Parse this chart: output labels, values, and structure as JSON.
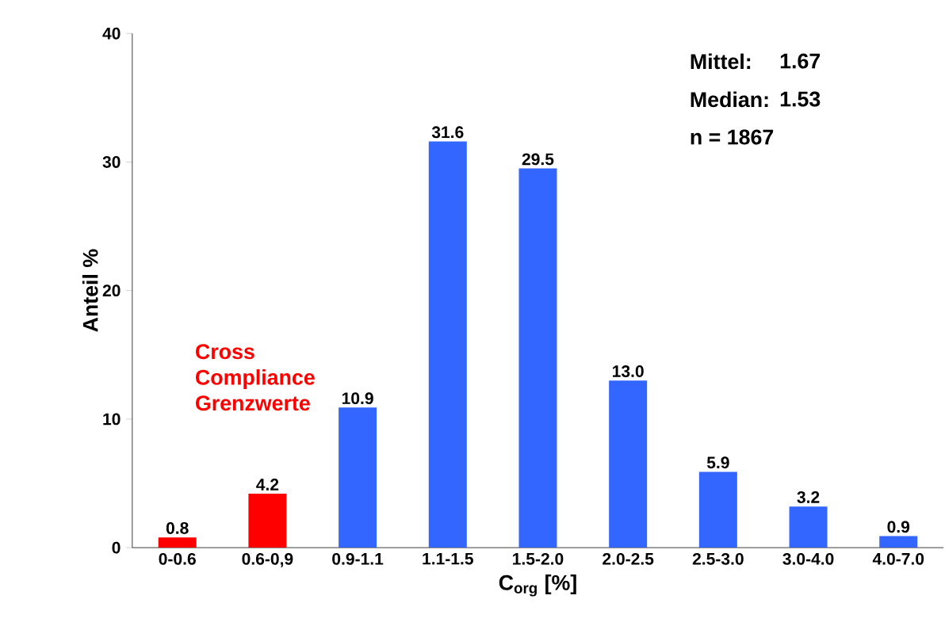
{
  "chart_data": {
    "type": "bar",
    "xlabel": "C$_{org}$ [%]",
    "ylabel": "Anteil %",
    "categories": [
      "0-0.6",
      "0.6-0,9",
      "0.9-1.1",
      "1.1-1.5",
      "1.5-2.0",
      "2.0-2.5",
      "2.5-3.0",
      "3.0-4.0",
      "4.0-7.0"
    ],
    "values": [
      0.8,
      4.2,
      10.9,
      31.6,
      29.5,
      13.0,
      5.9,
      3.2,
      0.9
    ],
    "colors": [
      "#ff0000",
      "#ff0000",
      "#3366ff",
      "#3366ff",
      "#3366ff",
      "#3366ff",
      "#3366ff",
      "#3366ff",
      "#3366ff"
    ],
    "value_labels": [
      "0.8",
      "4.2",
      "10.9",
      "31.6",
      "29.5",
      "13.0",
      "5.9",
      "3.2",
      "0.9"
    ],
    "ylim": [
      0,
      40
    ],
    "yticks": [
      0,
      10,
      20,
      30,
      40
    ],
    "grid": false,
    "annotations": [
      "Cross Compliance Grenzwerte",
      "Mittel:",
      "1.67",
      "Median:",
      "1.53",
      "n = 1867"
    ]
  }
}
